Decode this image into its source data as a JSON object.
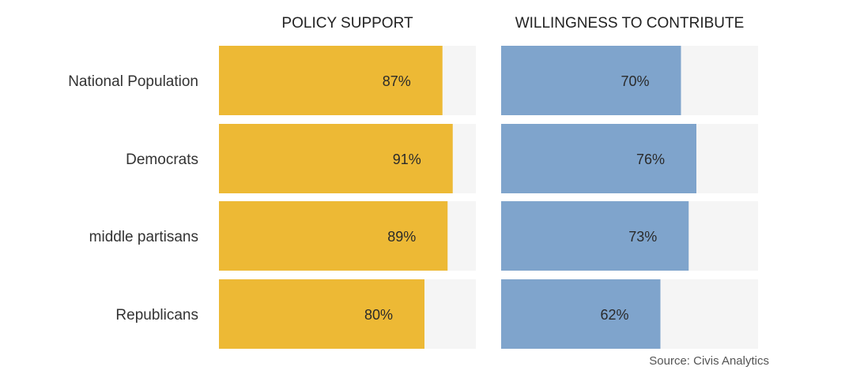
{
  "chart_data": {
    "type": "bar",
    "orientation": "horizontal",
    "categories": [
      "National Population",
      "Democrats",
      "middle partisans",
      "Republicans"
    ],
    "panels": [
      {
        "title": "POLICY SUPPORT",
        "values": [
          87,
          91,
          89,
          80
        ],
        "value_labels": [
          "87%",
          "91%",
          "89%",
          "80%"
        ],
        "color": "#edb935",
        "xlim": [
          0,
          100
        ]
      },
      {
        "title": "WILLINGNESS TO CONTRIBUTE",
        "values": [
          70,
          76,
          73,
          62
        ],
        "value_labels": [
          "70%",
          "76%",
          "73%",
          "62%"
        ],
        "color": "#7fa4cc",
        "xlim": [
          0,
          100
        ]
      }
    ],
    "track_color": "#f5f5f5",
    "grid": false
  },
  "source": "Source: Civis Analytics"
}
